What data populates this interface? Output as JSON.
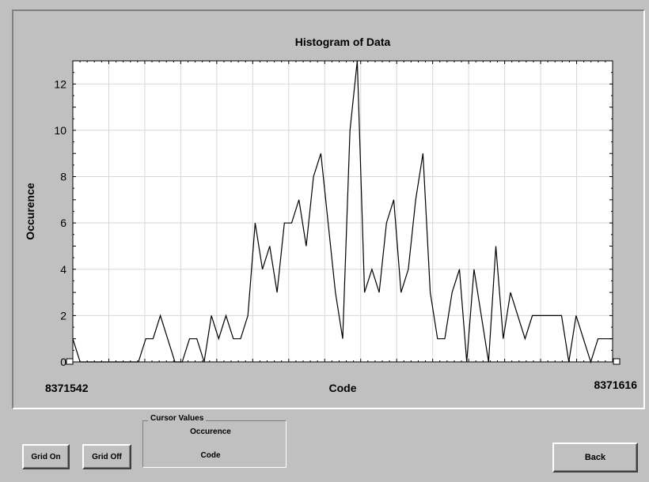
{
  "window": {
    "buttons": {
      "grid_on": "Grid On",
      "grid_off": "Grid Off",
      "back": "Back"
    },
    "cursor_values": {
      "legend": "Cursor Values",
      "occurrence_label": "Occurence",
      "code_label": "Code"
    },
    "x_axis_endpoints": {
      "min": "8371542",
      "max": "8371616"
    }
  },
  "chart_data": {
    "type": "line",
    "title": "Histogram of Data",
    "xlabel": "Code",
    "ylabel": "Occurence",
    "x_range": [
      8371542,
      8371616
    ],
    "ylim": [
      0,
      13
    ],
    "yticks": [
      0,
      2,
      4,
      6,
      8,
      10,
      12
    ],
    "grid": true,
    "series": [
      {
        "values": [
          1,
          0,
          0,
          0,
          0,
          0,
          0,
          0,
          0,
          0,
          1,
          1,
          2,
          1,
          0,
          0,
          1,
          1,
          0,
          2,
          1,
          2,
          1,
          1,
          2,
          6,
          4,
          5,
          3,
          6,
          6,
          7,
          5,
          8,
          9,
          6,
          3,
          1,
          10,
          13,
          3,
          4,
          3,
          6,
          7,
          3,
          4,
          7,
          9,
          3,
          1,
          1,
          3,
          4,
          0,
          4,
          2,
          0,
          5,
          1,
          3,
          2,
          1,
          2,
          2,
          2,
          2,
          2,
          0,
          2,
          1,
          0,
          1,
          1,
          1
        ]
      }
    ],
    "colors": {
      "line": "#000000",
      "plot_background": "#ffffff",
      "grid": "#d8d8d8"
    }
  }
}
